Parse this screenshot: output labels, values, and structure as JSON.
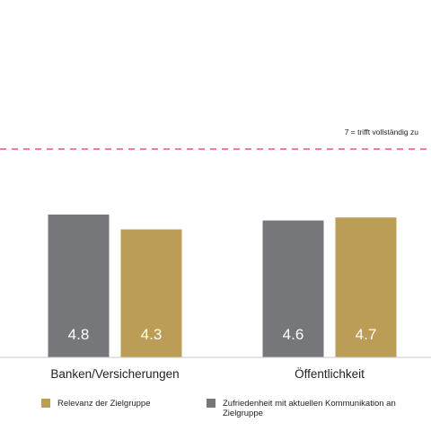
{
  "chart_data": {
    "type": "bar",
    "categories": [
      "Banken/Versicherungen",
      "Öffentlichkeit"
    ],
    "series": [
      {
        "name": "Zufriedenheit mit aktuellen Kommunikation an Zielgruppe",
        "values": [
          4.8,
          4.6
        ],
        "color": "#76777a",
        "value_labels": [
          "4.8",
          "4.6"
        ]
      },
      {
        "name": "Relevanz der Zielgruppe",
        "values": [
          4.3,
          4.7
        ],
        "color": "#bb9d56",
        "value_labels": [
          "4.3",
          "4.7"
        ]
      }
    ],
    "reference_line": {
      "value": 7,
      "label": "7 = trifft vollständig zu",
      "color": "#e8327a"
    },
    "ylim": [
      0,
      7
    ],
    "grid": false,
    "legend_position": "bottom"
  }
}
